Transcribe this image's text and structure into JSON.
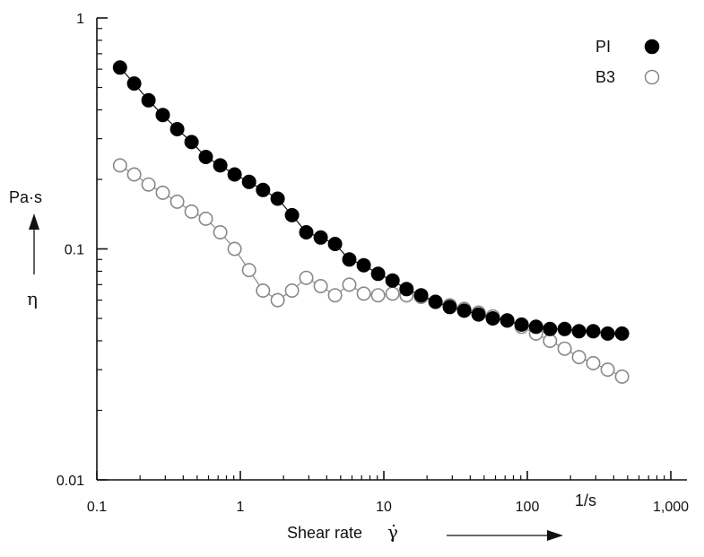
{
  "chart_data": {
    "type": "scatter",
    "x_scale": "log",
    "y_scale": "log",
    "xlim": [
      0.1,
      1000
    ],
    "ylim": [
      0.01,
      1
    ],
    "x_ticks": [
      {
        "value": 0.1,
        "label": "0.1"
      },
      {
        "value": 1,
        "label": "1"
      },
      {
        "value": 10,
        "label": "10"
      },
      {
        "value": 100,
        "label": "100"
      },
      {
        "value": 1000,
        "label": "1,000"
      }
    ],
    "y_ticks": [
      {
        "value": 0.01,
        "label": "0.01"
      },
      {
        "value": 0.1,
        "label": "0.1"
      },
      {
        "value": 1,
        "label": "1"
      }
    ],
    "xlabel": "Shear rate",
    "xlabel_symbol": "γ̇",
    "x_unit": "1/s",
    "ylabel_unit": "Pa·s",
    "ylabel_symbol": "η",
    "legend_position": "top-right",
    "grid": false,
    "series": [
      {
        "name": "PI",
        "marker": "filled-circle",
        "color": "#000000",
        "x": [
          0.145,
          0.182,
          0.229,
          0.288,
          0.363,
          0.457,
          0.575,
          0.724,
          0.912,
          1.15,
          1.44,
          1.82,
          2.29,
          2.88,
          3.63,
          4.57,
          5.75,
          7.24,
          9.12,
          11.5,
          14.4,
          18.2,
          22.9,
          28.8,
          36.3,
          45.7,
          57.5,
          72.4,
          91.2,
          115,
          144,
          182,
          229,
          288,
          363,
          457
        ],
        "y": [
          0.61,
          0.52,
          0.44,
          0.38,
          0.33,
          0.29,
          0.25,
          0.23,
          0.21,
          0.195,
          0.18,
          0.165,
          0.14,
          0.118,
          0.112,
          0.105,
          0.09,
          0.085,
          0.078,
          0.073,
          0.067,
          0.063,
          0.059,
          0.056,
          0.054,
          0.052,
          0.05,
          0.049,
          0.047,
          0.046,
          0.045,
          0.045,
          0.044,
          0.044,
          0.043,
          0.043
        ]
      },
      {
        "name": "B3",
        "marker": "open-circle",
        "color": "#888888",
        "x": [
          0.145,
          0.182,
          0.229,
          0.288,
          0.363,
          0.457,
          0.575,
          0.724,
          0.912,
          1.15,
          1.44,
          1.82,
          2.29,
          2.88,
          3.63,
          4.57,
          5.75,
          7.24,
          9.12,
          11.5,
          14.4,
          18.2,
          22.9,
          28.8,
          36.3,
          45.7,
          57.5,
          72.4,
          91.2,
          115,
          144,
          182,
          229,
          288,
          363,
          457
        ],
        "y": [
          0.23,
          0.21,
          0.19,
          0.175,
          0.16,
          0.145,
          0.135,
          0.118,
          0.1,
          0.081,
          0.066,
          0.06,
          0.066,
          0.075,
          0.069,
          0.063,
          0.07,
          0.064,
          0.063,
          0.064,
          0.063,
          0.062,
          0.059,
          0.057,
          0.055,
          0.053,
          0.051,
          0.049,
          0.046,
          0.043,
          0.04,
          0.037,
          0.034,
          0.032,
          0.03,
          0.028
        ]
      }
    ]
  }
}
